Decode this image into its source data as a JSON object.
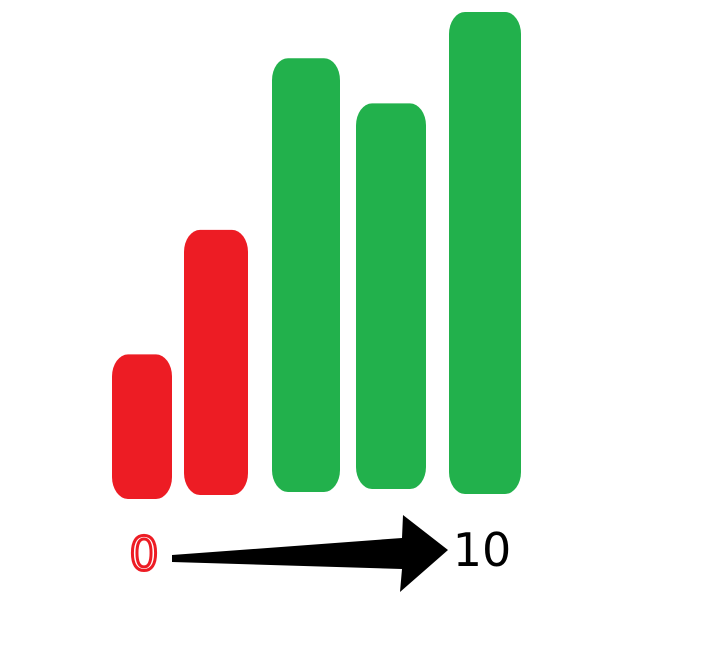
{
  "chart_data": {
    "type": "bar",
    "categories": [
      "",
      "",
      "",
      "",
      ""
    ],
    "values": [
      3,
      5.5,
      9,
      8,
      10
    ],
    "ylim": [
      0,
      10
    ],
    "grid": false,
    "legend": "none",
    "colors": {
      "low": "#ed1c24",
      "high": "#22b14c",
      "arrow": "#000000"
    },
    "bar_colors": [
      "#ed1c24",
      "#ed1c24",
      "#22b14c",
      "#22b14c",
      "#22b14c"
    ],
    "scale": {
      "start_label": "0",
      "end_label": "10",
      "start_color": "#ed1c24",
      "end_color": "#000000"
    }
  }
}
